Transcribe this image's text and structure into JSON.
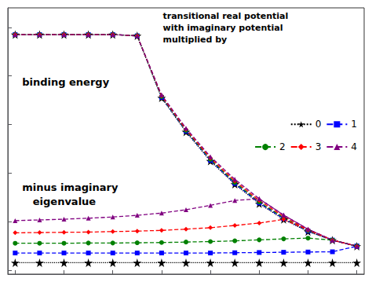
{
  "chart_data": {
    "type": "line",
    "annotations": [
      "binding energy",
      "minus imaginary\n   eigenvalue",
      "transitional real potential\nwith imaginary potential\nmultiplied by"
    ],
    "x": [
      0,
      1,
      2,
      3,
      4,
      5,
      6,
      7,
      8,
      9,
      10,
      11,
      12,
      13,
      14
    ],
    "series": [
      {
        "name": "0",
        "color": "black",
        "marker": "star",
        "line_style": "dotted",
        "values": [
          9.7,
          9.7,
          9.7,
          9.7,
          9.7,
          9.65,
          7.1,
          5.7,
          4.5,
          3.55,
          2.75,
          2.1,
          1.6,
          1.25,
          1.0
        ]
      },
      {
        "name": "1",
        "color": "blue",
        "marker": "square",
        "line_style": "dashed",
        "values": [
          9.7,
          9.7,
          9.7,
          9.7,
          9.7,
          9.65,
          7.12,
          5.73,
          4.53,
          3.58,
          2.78,
          2.13,
          1.62,
          1.25,
          1.0
        ]
      },
      {
        "name": "2",
        "color": "green",
        "marker": "circle",
        "line_style": "dashed",
        "values": [
          9.7,
          9.7,
          9.7,
          9.7,
          9.7,
          9.65,
          7.15,
          5.76,
          4.57,
          3.62,
          2.82,
          2.17,
          1.64,
          1.25,
          1.0
        ]
      },
      {
        "name": "3",
        "color": "red",
        "marker": "diamond",
        "line_style": "dashed",
        "values": [
          9.7,
          9.7,
          9.7,
          9.7,
          9.7,
          9.65,
          7.18,
          5.8,
          4.62,
          3.68,
          2.88,
          2.22,
          1.67,
          1.25,
          1.0
        ]
      },
      {
        "name": "4",
        "color": "purple",
        "marker": "triangle",
        "line_style": "dashed",
        "values": [
          9.7,
          9.7,
          9.7,
          9.7,
          9.7,
          9.65,
          7.22,
          5.85,
          4.68,
          3.75,
          2.95,
          2.28,
          1.7,
          1.25,
          1.0
        ]
      },
      {
        "name": "0",
        "color": "black",
        "marker": "star",
        "line_style": "dotted",
        "values": [
          0.32,
          0.32,
          0.32,
          0.32,
          0.32,
          0.32,
          0.32,
          0.32,
          0.32,
          0.32,
          0.32,
          0.32,
          0.32,
          0.32,
          0.32
        ]
      },
      {
        "name": "1",
        "color": "blue",
        "marker": "square",
        "line_style": "dashed",
        "values": [
          0.72,
          0.72,
          0.72,
          0.72,
          0.72,
          0.72,
          0.72,
          0.72,
          0.72,
          0.73,
          0.74,
          0.75,
          0.76,
          0.77,
          1.0
        ]
      },
      {
        "name": "2",
        "color": "green",
        "marker": "circle",
        "line_style": "dashed",
        "values": [
          1.12,
          1.12,
          1.12,
          1.13,
          1.13,
          1.14,
          1.15,
          1.17,
          1.19,
          1.22,
          1.26,
          1.3,
          1.33,
          1.25,
          1.0
        ]
      },
      {
        "name": "3",
        "color": "red",
        "marker": "diamond",
        "line_style": "dashed",
        "values": [
          1.55,
          1.56,
          1.57,
          1.58,
          1.6,
          1.62,
          1.65,
          1.7,
          1.76,
          1.85,
          1.95,
          2.1,
          1.67,
          1.25,
          1.0
        ]
      },
      {
        "name": "4",
        "color": "purple",
        "marker": "triangle",
        "line_style": "dashed",
        "values": [
          2.05,
          2.08,
          2.11,
          2.15,
          2.2,
          2.27,
          2.36,
          2.5,
          2.68,
          2.88,
          2.95,
          2.28,
          1.7,
          1.25,
          1.0
        ]
      }
    ],
    "xlim": [
      -0.3,
      14.3
    ],
    "ylim": [
      -0.15,
      10.8
    ],
    "xticks": [
      0,
      2,
      4,
      6,
      8,
      10,
      12,
      14
    ],
    "yticks": [
      0,
      2,
      4,
      6,
      8,
      10
    ],
    "tick_labels": false,
    "grid": false,
    "legend": "right"
  }
}
